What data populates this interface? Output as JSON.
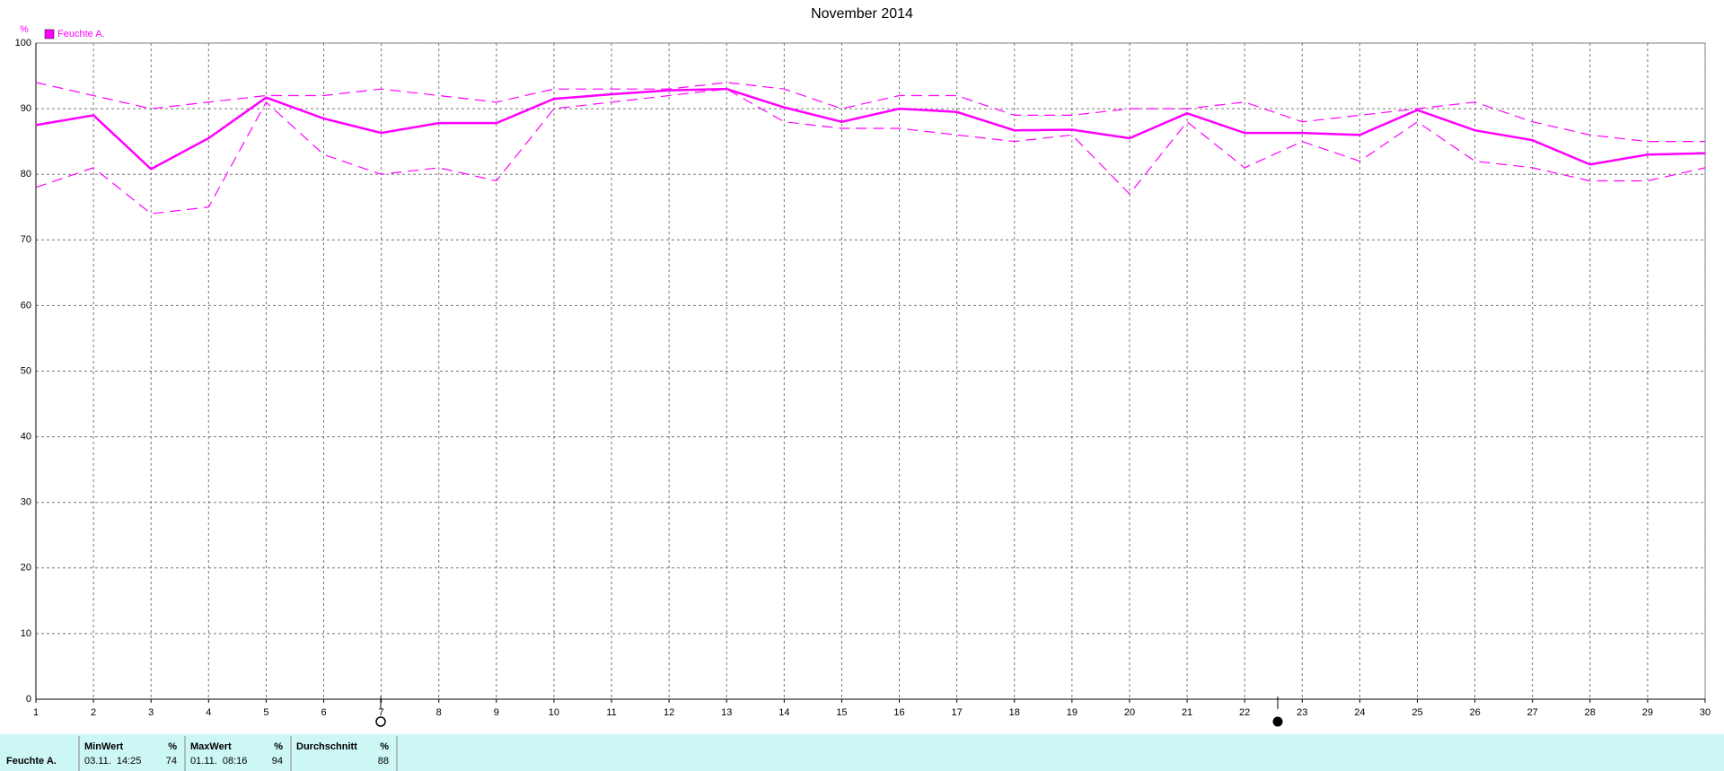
{
  "chart_data": {
    "type": "line",
    "title": "November 2014",
    "y_label": "%",
    "x": [
      1,
      2,
      3,
      4,
      5,
      6,
      7,
      8,
      9,
      10,
      11,
      12,
      13,
      14,
      15,
      16,
      17,
      18,
      19,
      20,
      21,
      22,
      23,
      24,
      25,
      26,
      27,
      28,
      29,
      30
    ],
    "xlim": [
      1,
      30
    ],
    "xticks": [
      1,
      2,
      3,
      4,
      5,
      6,
      7,
      8,
      9,
      10,
      11,
      12,
      13,
      14,
      15,
      16,
      17,
      18,
      19,
      20,
      21,
      22,
      23,
      24,
      25,
      26,
      27,
      28,
      29,
      30
    ],
    "ylim": [
      0,
      100
    ],
    "yticks": [
      0,
      10,
      20,
      30,
      40,
      50,
      60,
      70,
      80,
      90,
      100
    ],
    "grid": true,
    "legend": "top-left",
    "series": [
      {
        "name": "Feuchte A.",
        "color": "#ff00ff",
        "style": "solid",
        "values": [
          87.5,
          89,
          80.8,
          85.5,
          91.7,
          88.5,
          86.3,
          87.8,
          87.8,
          91.5,
          92.2,
          92.8,
          93,
          90.2,
          88,
          90,
          89.5,
          86.7,
          86.8,
          85.5,
          89.3,
          86.3,
          86.3,
          86,
          89.8,
          86.7,
          85.2,
          81.5,
          83,
          83.2
        ]
      },
      {
        "color": "#ff00ff",
        "style": "dashed",
        "values": [
          94,
          92,
          90,
          91,
          92,
          92,
          93,
          92,
          91,
          93,
          93,
          93,
          94,
          93,
          90,
          92,
          92,
          89,
          89,
          90,
          90,
          91,
          88,
          89,
          90,
          91,
          88,
          86,
          85,
          85
        ]
      },
      {
        "color": "#ff00ff",
        "style": "dashed",
        "values": [
          78,
          81,
          74,
          75,
          91,
          83,
          80,
          81,
          79,
          90,
          91,
          92,
          93,
          88,
          87,
          87,
          86,
          85,
          86,
          77,
          88,
          81,
          85,
          82,
          88,
          82,
          81,
          79,
          79,
          81
        ]
      }
    ]
  },
  "summary": {
    "row_label": "Feuchte A.",
    "columns": [
      {
        "header": "MinWert",
        "unit": "%",
        "time": "03.11.  14:25",
        "value": 74
      },
      {
        "header": "MaxWert",
        "unit": "%",
        "time": "01.11.  08:16",
        "value": 94
      },
      {
        "header": "Durchschnitt",
        "unit": "%",
        "value": 88
      }
    ]
  }
}
